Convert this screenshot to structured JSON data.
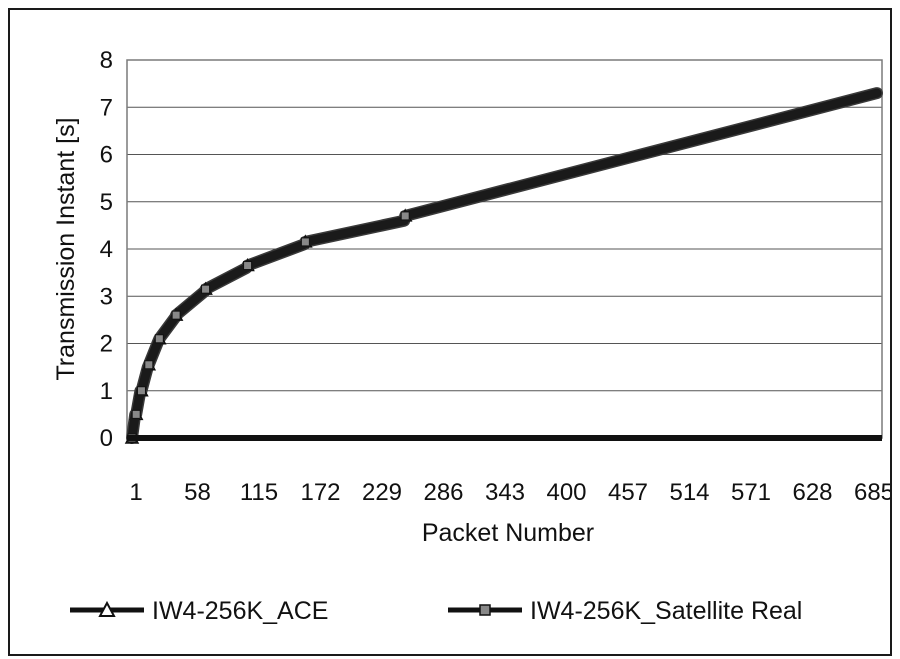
{
  "chart_data": {
    "type": "line",
    "title": "",
    "xlabel": "Packet Number",
    "ylabel": "Transmission Instant [s]",
    "ylim": [
      0,
      8
    ],
    "yticks": [
      0,
      1,
      2,
      3,
      4,
      5,
      6,
      7,
      8
    ],
    "xlim": [
      1,
      710
    ],
    "xticks": [
      1,
      58,
      115,
      172,
      229,
      286,
      343,
      400,
      457,
      514,
      571,
      628,
      685
    ],
    "grid": "horizontal",
    "legend_position": "bottom",
    "series": [
      {
        "name": "IW4-256K_ACE",
        "marker": "triangle",
        "x": [
          1,
          4,
          5,
          9,
          10,
          16,
          17,
          26,
          27,
          42,
          43,
          70,
          71,
          110,
          111,
          165,
          166,
          260,
          261,
          710
        ],
        "y": [
          0,
          0.5,
          0.5,
          1.0,
          1.0,
          1.5,
          1.55,
          2.05,
          2.1,
          2.55,
          2.6,
          3.1,
          3.15,
          3.6,
          3.65,
          4.1,
          4.15,
          4.6,
          4.7,
          7.3
        ]
      },
      {
        "name": "IW4-256K_Satellite Real",
        "marker": "square",
        "x": [
          1,
          4,
          5,
          9,
          10,
          16,
          17,
          26,
          27,
          42,
          43,
          70,
          71,
          110,
          111,
          165,
          166,
          260,
          261,
          710
        ],
        "y": [
          0,
          0.5,
          0.5,
          1.0,
          1.0,
          1.5,
          1.55,
          2.05,
          2.1,
          2.55,
          2.6,
          3.1,
          3.15,
          3.6,
          3.65,
          4.1,
          4.15,
          4.6,
          4.7,
          7.3
        ]
      }
    ]
  }
}
